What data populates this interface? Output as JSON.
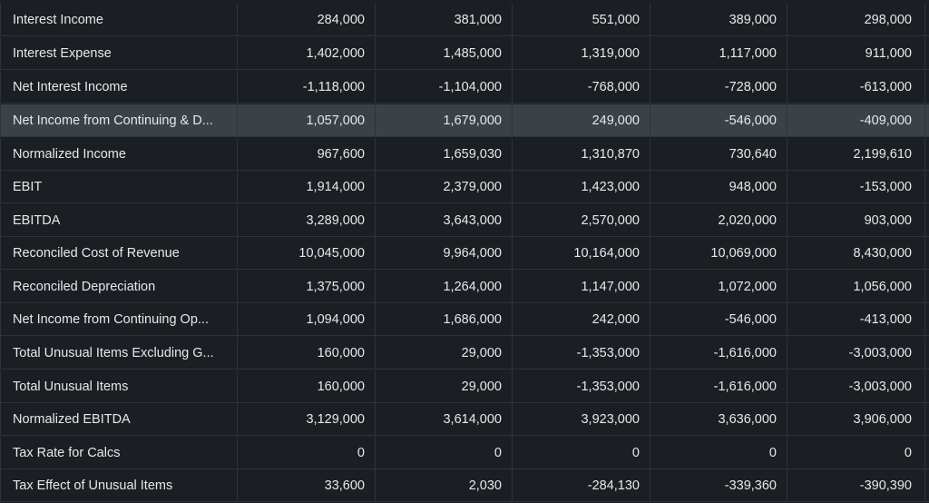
{
  "table": {
    "rows": [
      {
        "label": "Interest Income",
        "values": [
          "284,000",
          "381,000",
          "551,000",
          "389,000",
          "298,000"
        ],
        "highlighted": false
      },
      {
        "label": "Interest Expense",
        "values": [
          "1,402,000",
          "1,485,000",
          "1,319,000",
          "1,117,000",
          "911,000"
        ],
        "highlighted": false
      },
      {
        "label": "Net Interest Income",
        "values": [
          "-1,118,000",
          "-1,104,000",
          "-768,000",
          "-728,000",
          "-613,000"
        ],
        "highlighted": false
      },
      {
        "label": "Net Income from Continuing & D...",
        "values": [
          "1,057,000",
          "1,679,000",
          "249,000",
          "-546,000",
          "-409,000"
        ],
        "highlighted": true
      },
      {
        "label": "Normalized Income",
        "values": [
          "967,600",
          "1,659,030",
          "1,310,870",
          "730,640",
          "2,199,610"
        ],
        "highlighted": false
      },
      {
        "label": "EBIT",
        "values": [
          "1,914,000",
          "2,379,000",
          "1,423,000",
          "948,000",
          "-153,000"
        ],
        "highlighted": false
      },
      {
        "label": "EBITDA",
        "values": [
          "3,289,000",
          "3,643,000",
          "2,570,000",
          "2,020,000",
          "903,000"
        ],
        "highlighted": false
      },
      {
        "label": "Reconciled Cost of Revenue",
        "values": [
          "10,045,000",
          "9,964,000",
          "10,164,000",
          "10,069,000",
          "8,430,000"
        ],
        "highlighted": false
      },
      {
        "label": "Reconciled Depreciation",
        "values": [
          "1,375,000",
          "1,264,000",
          "1,147,000",
          "1,072,000",
          "1,056,000"
        ],
        "highlighted": false
      },
      {
        "label": "Net Income from Continuing Op...",
        "values": [
          "1,094,000",
          "1,686,000",
          "242,000",
          "-546,000",
          "-413,000"
        ],
        "highlighted": false
      },
      {
        "label": "Total Unusual Items Excluding G...",
        "values": [
          "160,000",
          "29,000",
          "-1,353,000",
          "-1,616,000",
          "-3,003,000"
        ],
        "highlighted": false
      },
      {
        "label": "Total Unusual Items",
        "values": [
          "160,000",
          "29,000",
          "-1,353,000",
          "-1,616,000",
          "-3,003,000"
        ],
        "highlighted": false
      },
      {
        "label": "Normalized EBITDA",
        "values": [
          "3,129,000",
          "3,614,000",
          "3,923,000",
          "3,636,000",
          "3,906,000"
        ],
        "highlighted": false
      },
      {
        "label": "Tax Rate for Calcs",
        "values": [
          "0",
          "0",
          "0",
          "0",
          "0"
        ],
        "highlighted": false
      },
      {
        "label": "Tax Effect of Unusual Items",
        "values": [
          "33,600",
          "2,030",
          "-284,130",
          "-339,360",
          "-390,390"
        ],
        "highlighted": false
      }
    ]
  },
  "colors": {
    "background": "#1b1f23",
    "row_highlight": "#3a4147",
    "grid_line": "#2f3439",
    "text": "#e6e8ea"
  }
}
